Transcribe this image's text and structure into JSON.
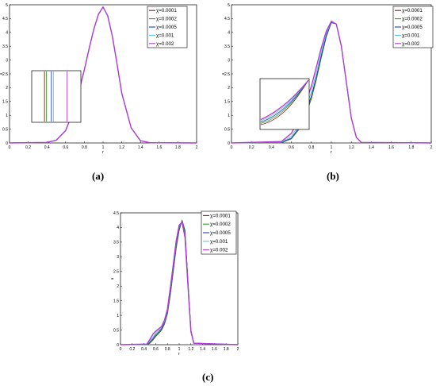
{
  "chart_data": [
    {
      "panel": "(a)",
      "type": "line",
      "title": "",
      "xlabel": "r",
      "ylabel": "u",
      "xlim": [
        0,
        2
      ],
      "ylim": [
        0,
        5
      ],
      "xticks": [
        "0",
        "0.2",
        "0.4",
        "0.6",
        "0.8",
        "1",
        "1.2",
        "1.4",
        "1.6",
        "1.8",
        "2"
      ],
      "yticks": [
        "0",
        "0.5",
        "1",
        "1.5",
        "2",
        "2.5",
        "3",
        "3.5",
        "4",
        "4.5",
        "5"
      ],
      "grid": false,
      "legend_position": "top-right",
      "inset": "left",
      "x": [
        0,
        0.4,
        0.5,
        0.6,
        0.7,
        0.8,
        0.85,
        0.9,
        0.95,
        1.0,
        1.05,
        1.1,
        1.15,
        1.2,
        1.3,
        1.4,
        1.5,
        2.0
      ],
      "series": [
        {
          "name": "χ=0.0001",
          "color": "#8b1a1a",
          "values": [
            0,
            0.02,
            0.1,
            0.45,
            1.3,
            2.65,
            3.4,
            4.1,
            4.65,
            4.92,
            4.6,
            3.85,
            2.85,
            1.8,
            0.55,
            0.08,
            0.01,
            0
          ]
        },
        {
          "name": "χ=0.0002",
          "color": "#2ca02c",
          "values": [
            0,
            0.02,
            0.1,
            0.45,
            1.3,
            2.65,
            3.4,
            4.1,
            4.65,
            4.92,
            4.6,
            3.85,
            2.85,
            1.8,
            0.55,
            0.08,
            0.01,
            0
          ]
        },
        {
          "name": "χ=0.0005",
          "color": "#1f3fbf",
          "values": [
            0,
            0.02,
            0.1,
            0.45,
            1.3,
            2.65,
            3.4,
            4.1,
            4.65,
            4.92,
            4.6,
            3.85,
            2.85,
            1.8,
            0.55,
            0.08,
            0.01,
            0
          ]
        },
        {
          "name": "χ=0.001",
          "color": "#5fc7d8",
          "values": [
            0,
            0.02,
            0.1,
            0.45,
            1.3,
            2.65,
            3.4,
            4.1,
            4.65,
            4.92,
            4.6,
            3.85,
            2.85,
            1.8,
            0.55,
            0.08,
            0.01,
            0
          ]
        },
        {
          "name": "χ=0.002",
          "color": "#b03cd6",
          "values": [
            0,
            0.02,
            0.1,
            0.45,
            1.3,
            2.65,
            3.4,
            4.1,
            4.65,
            4.92,
            4.6,
            3.85,
            2.85,
            1.8,
            0.55,
            0.08,
            0.01,
            0
          ]
        }
      ]
    },
    {
      "panel": "(b)",
      "type": "line",
      "title": "",
      "xlabel": "r",
      "ylabel": "u",
      "xlim": [
        0,
        2
      ],
      "ylim": [
        0,
        5
      ],
      "xticks": [
        "0",
        "0.2",
        "0.4",
        "0.6",
        "0.8",
        "1",
        "1.2",
        "1.4",
        "1.6",
        "1.8",
        "2"
      ],
      "yticks": [
        "0",
        "0.5",
        "1",
        "1.5",
        "2",
        "2.5",
        "3",
        "3.5",
        "4",
        "4.5",
        "5"
      ],
      "grid": false,
      "legend_position": "top-right",
      "inset": "left",
      "x": [
        0,
        0.5,
        0.6,
        0.7,
        0.8,
        0.85,
        0.9,
        0.95,
        1.0,
        1.05,
        1.1,
        1.15,
        1.2,
        1.25,
        1.3,
        2.0
      ],
      "series": [
        {
          "name": "χ=0.0001",
          "color": "#8b1a1a",
          "values": [
            0,
            0.01,
            0.15,
            0.6,
            1.6,
            2.3,
            3.1,
            3.85,
            4.35,
            4.3,
            3.5,
            2.2,
            0.9,
            0.2,
            0.02,
            0
          ]
        },
        {
          "name": "χ=0.0002",
          "color": "#2ca02c",
          "values": [
            0,
            0.01,
            0.16,
            0.62,
            1.63,
            2.33,
            3.12,
            3.87,
            4.36,
            4.3,
            3.5,
            2.2,
            0.9,
            0.2,
            0.02,
            0
          ]
        },
        {
          "name": "χ=0.0005",
          "color": "#1f3fbf",
          "values": [
            0,
            0.02,
            0.18,
            0.68,
            1.7,
            2.4,
            3.18,
            3.9,
            4.37,
            4.3,
            3.5,
            2.2,
            0.9,
            0.2,
            0.02,
            0
          ]
        },
        {
          "name": "χ=0.001",
          "color": "#5fc7d8",
          "values": [
            0,
            0.03,
            0.24,
            0.8,
            1.85,
            2.55,
            3.3,
            3.97,
            4.39,
            4.3,
            3.5,
            2.2,
            0.9,
            0.2,
            0.02,
            0
          ]
        },
        {
          "name": "χ=0.002",
          "color": "#b03cd6",
          "values": [
            0,
            0.05,
            0.35,
            1.0,
            2.05,
            2.75,
            3.45,
            4.05,
            4.4,
            4.3,
            3.5,
            2.2,
            0.9,
            0.2,
            0.02,
            0
          ]
        }
      ]
    },
    {
      "panel": "(c)",
      "type": "line",
      "title": "",
      "xlabel": "r",
      "ylabel": "u",
      "xlim": [
        0,
        2
      ],
      "ylim": [
        0,
        4.5
      ],
      "xticks": [
        "0",
        "0.2",
        "0.4",
        "0.6",
        "0.8",
        "1",
        "1.2",
        "1.4",
        "1.6",
        "1.8",
        "2"
      ],
      "yticks": [
        "0",
        "0.5",
        "1",
        "1.5",
        "2",
        "2.5",
        "3",
        "3.5",
        "4",
        "4.5"
      ],
      "grid": false,
      "legend_position": "top-right",
      "x": [
        0,
        0.45,
        0.5,
        0.55,
        0.6,
        0.65,
        0.7,
        0.75,
        0.8,
        0.85,
        0.9,
        0.95,
        1.0,
        1.05,
        1.1,
        1.15,
        1.2,
        1.25,
        2.0
      ],
      "series": [
        {
          "name": "χ=0.0001",
          "color": "#8b1a1a",
          "values": [
            0,
            0,
            0.05,
            0.15,
            0.28,
            0.38,
            0.5,
            0.7,
            1.05,
            1.7,
            2.5,
            3.3,
            3.9,
            4.25,
            3.9,
            2.2,
            0.5,
            0.05,
            0
          ]
        },
        {
          "name": "χ=0.0002",
          "color": "#2ca02c",
          "values": [
            0,
            0,
            0.06,
            0.17,
            0.3,
            0.4,
            0.52,
            0.72,
            1.08,
            1.75,
            2.55,
            3.35,
            3.95,
            4.24,
            3.85,
            2.15,
            0.5,
            0.05,
            0
          ]
        },
        {
          "name": "χ=0.0005",
          "color": "#1f3fbf",
          "values": [
            0,
            0,
            0.08,
            0.2,
            0.34,
            0.44,
            0.55,
            0.76,
            1.12,
            1.82,
            2.62,
            3.42,
            4.0,
            4.22,
            3.8,
            2.1,
            0.5,
            0.05,
            0
          ]
        },
        {
          "name": "χ=0.001",
          "color": "#5fc7d8",
          "values": [
            0,
            0.01,
            0.12,
            0.26,
            0.4,
            0.5,
            0.6,
            0.8,
            1.17,
            1.9,
            2.7,
            3.5,
            4.05,
            4.2,
            3.72,
            2.05,
            0.48,
            0.05,
            0
          ]
        },
        {
          "name": "χ=0.002",
          "color": "#b03cd6",
          "values": [
            0,
            0.02,
            0.18,
            0.35,
            0.46,
            0.54,
            0.62,
            0.84,
            1.22,
            1.95,
            2.75,
            3.55,
            4.08,
            4.18,
            3.65,
            2.0,
            0.45,
            0.05,
            0
          ]
        }
      ]
    }
  ]
}
